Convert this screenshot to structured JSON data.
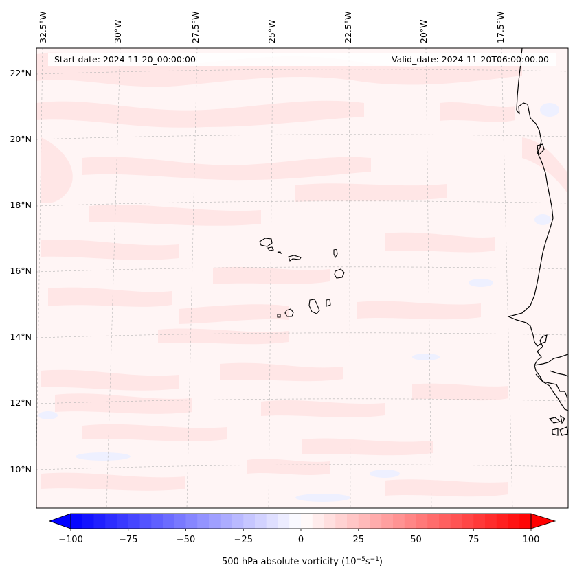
{
  "map": {
    "start_date_label": "Start date: 2024-11-20_00:00:00",
    "valid_date_label": "Valid_date: 2024-11-20T06:00:00.00",
    "lon_labels": [
      "32.5°W",
      "30°W",
      "27.5°W",
      "25°W",
      "22.5°W",
      "20°W",
      "17.5°W"
    ],
    "lat_labels": [
      "22°N",
      "20°N",
      "18°N",
      "16°N",
      "14°N",
      "12°N",
      "10°N"
    ],
    "field_colors": {
      "background": "#fff5f5",
      "positive_patch": "#ffe6e6",
      "positive_strong": "#ffdada",
      "negative_patch": "#eef0ff"
    }
  },
  "colorbar": {
    "tick_labels": [
      "−100",
      "−75",
      "−50",
      "−25",
      "0",
      "25",
      "50",
      "75",
      "100"
    ],
    "label": "500 hPa absolute vorticity (10",
    "label_exp1": "−5",
    "label_mid": "s",
    "label_exp2": "−1",
    "label_end": ")",
    "min": -100,
    "max": 100,
    "levels_step": 5,
    "colormap": "bwr",
    "extend": "both"
  }
}
